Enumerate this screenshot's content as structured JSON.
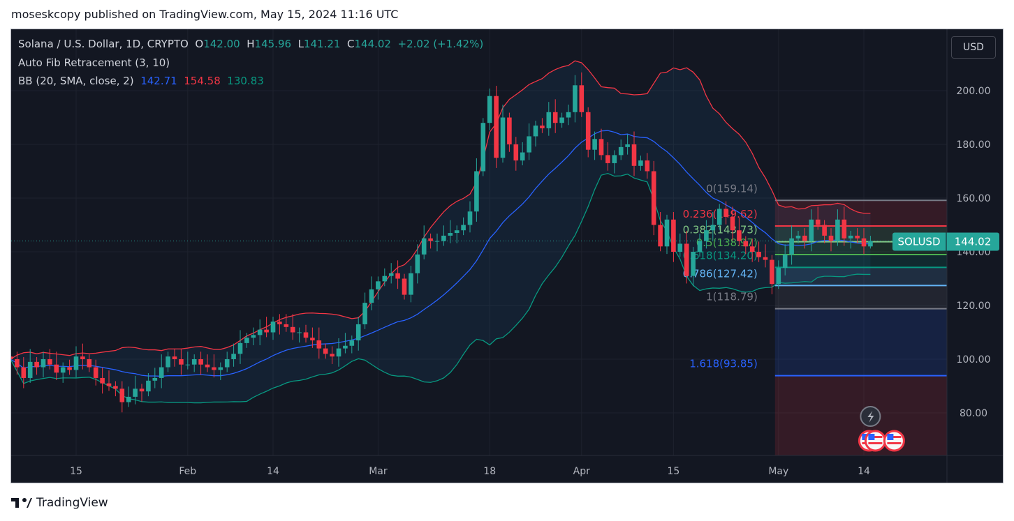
{
  "header": {
    "published": "moseskcopy published on TradingView.com, May 15, 2024 11:16 UTC"
  },
  "legend": {
    "symbol": "Solana / U.S. Dollar, 1D, CRYPTO",
    "o_label": "O",
    "o": "142.00",
    "h_label": "H",
    "h": "145.96",
    "l_label": "L",
    "l": "141.21",
    "c_label": "C",
    "c": "144.02",
    "change": "+2.02 (+1.42%)",
    "fib": "Auto Fib Retracement (3, 10)",
    "bb": "BB (20, SMA, close, 2)",
    "bb_basis": "142.71",
    "bb_upper": "154.58",
    "bb_lower": "130.83"
  },
  "currency_button": "USD",
  "price_tag": {
    "symbol": "SOLUSD",
    "price": "144.02"
  },
  "brand": "TradingView",
  "colors": {
    "up": "#26a69a",
    "down": "#f23645",
    "basis": "#2962ff",
    "upper": "#f23645",
    "lower": "#089981",
    "background": "#131722"
  },
  "chart_data": {
    "type": "candlestick",
    "start_date": "2024-01-05",
    "interval": "1D",
    "closes": [
      100,
      97,
      93,
      99,
      97,
      100,
      98,
      95,
      97,
      96,
      101,
      100,
      97,
      93,
      91,
      90,
      89,
      84,
      86,
      89,
      88,
      92,
      93,
      97,
      101,
      100,
      98,
      98,
      100,
      98,
      97,
      96,
      97,
      100,
      102,
      106,
      108,
      109,
      111,
      110,
      114,
      113,
      112,
      110,
      110,
      108,
      107,
      104,
      102,
      101,
      104,
      105,
      107,
      113,
      121,
      126,
      129,
      131,
      132,
      130,
      124,
      132,
      139,
      145,
      144,
      144,
      146,
      147,
      148,
      150,
      155,
      170,
      188,
      198,
      175,
      190,
      180,
      174,
      177,
      183,
      187,
      186,
      192,
      188,
      190,
      192,
      202,
      192,
      178,
      182,
      176,
      173,
      176,
      179,
      180,
      172,
      174,
      170,
      150,
      142,
      152,
      140,
      143,
      131,
      140,
      144,
      148,
      150,
      156,
      153,
      148,
      144,
      142,
      140,
      138,
      137,
      128,
      134,
      139,
      145,
      146,
      144,
      152,
      150,
      146,
      144,
      152,
      145,
      146,
      145,
      142,
      144.02
    ],
    "last_bar": {
      "open": 142.0,
      "high": 145.96,
      "low": 141.21,
      "close": 144.02
    },
    "yaxis_ticks": [
      "80.00",
      "100.00",
      "120.00",
      "140.00",
      "160.00",
      "180.00",
      "200.00"
    ],
    "ylim": [
      66,
      217
    ],
    "xaxis_ticks": [
      {
        "label": "15",
        "date": "2024-01-15"
      },
      {
        "label": "Feb",
        "date": "2024-02-01"
      },
      {
        "label": "14",
        "date": "2024-02-14"
      },
      {
        "label": "Mar",
        "date": "2024-03-01"
      },
      {
        "label": "18",
        "date": "2024-03-18"
      },
      {
        "label": "Apr",
        "date": "2024-04-01"
      },
      {
        "label": "15",
        "date": "2024-04-15"
      },
      {
        "label": "May",
        "date": "2024-05-01"
      },
      {
        "label": "14",
        "date": "2024-05-14"
      }
    ],
    "bollinger": {
      "length": 20,
      "mult": 2
    },
    "fib_start_date": "2024-05-01",
    "fib_levels": [
      {
        "label": "0(159.14)",
        "price": 159.14,
        "color": "#787b86"
      },
      {
        "label": "0.236(149.62)",
        "price": 149.62,
        "color": "#f23645"
      },
      {
        "label": "0.382(143.73)",
        "price": 143.73,
        "color": "#81c784"
      },
      {
        "label": "0.5(138.97)",
        "price": 138.97,
        "color": "#4caf50"
      },
      {
        "label": "0.618(134.20)",
        "price": 134.2,
        "color": "#089981"
      },
      {
        "label": "0.786(127.42)",
        "price": 127.42,
        "color": "#64b5f6"
      },
      {
        "label": "1(118.79)",
        "price": 118.79,
        "color": "#787b86"
      },
      {
        "label": "1.618(93.85)",
        "price": 93.85,
        "color": "#2962ff"
      }
    ]
  }
}
